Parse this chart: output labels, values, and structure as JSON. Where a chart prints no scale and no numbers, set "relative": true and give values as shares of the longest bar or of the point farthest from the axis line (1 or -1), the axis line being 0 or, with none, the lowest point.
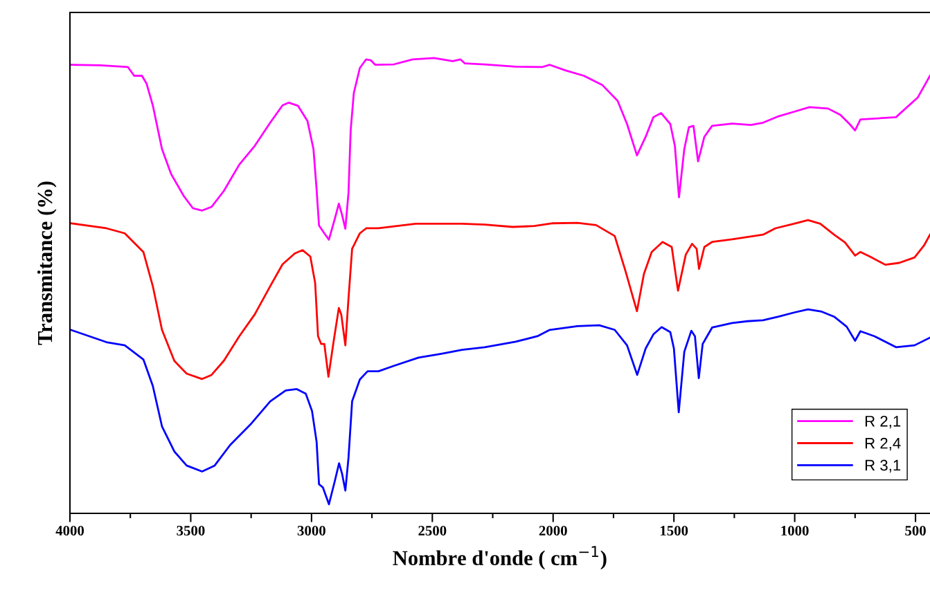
{
  "chart_data": {
    "type": "line",
    "relative": true,
    "xlabel": "Nombre d'onde ( cm$^{−1}$)",
    "ylabel": "Transmitance (%)",
    "xlim": [
      4000,
      440
    ],
    "xticks": [
      4000,
      3500,
      3000,
      2500,
      2000,
      1500,
      1000,
      500
    ],
    "grid": false,
    "legend": "bottom right",
    "tick_labels": "x",
    "series": [
      {
        "name": "R 2,1",
        "color": "#ff00ff",
        "x": [
          3997,
          3875,
          3760,
          3734,
          3702,
          3683,
          3657,
          3619,
          3581,
          3529,
          3491,
          3453,
          3414,
          3363,
          3299,
          3235,
          3171,
          3120,
          3094,
          3056,
          3017,
          2992,
          2979,
          2969,
          2947,
          2928,
          2902,
          2887,
          2874,
          2860,
          2847,
          2838,
          2825,
          2800,
          2774,
          2755,
          2736,
          2659,
          2582,
          2493,
          2416,
          2384,
          2365,
          2283,
          2155,
          2046,
          2014,
          1950,
          1873,
          1797,
          1733,
          1694,
          1653,
          1617,
          1585,
          1553,
          1515,
          1496,
          1479,
          1457,
          1438,
          1419,
          1400,
          1374,
          1342,
          1259,
          1182,
          1131,
          1067,
          1003,
          939,
          862,
          811,
          773,
          750,
          728,
          581,
          491,
          440
        ],
        "values": [
          0.985,
          0.984,
          0.98,
          0.961,
          0.961,
          0.944,
          0.896,
          0.8,
          0.745,
          0.697,
          0.67,
          0.665,
          0.673,
          0.708,
          0.766,
          0.807,
          0.858,
          0.896,
          0.902,
          0.895,
          0.862,
          0.8,
          0.711,
          0.632,
          0.615,
          0.601,
          0.65,
          0.68,
          0.656,
          0.625,
          0.704,
          0.841,
          0.923,
          0.978,
          0.997,
          0.995,
          0.985,
          0.986,
          0.997,
          1,
          0.993,
          0.997,
          0.988,
          0.986,
          0.981,
          0.98,
          0.985,
          0.973,
          0.961,
          0.941,
          0.906,
          0.855,
          0.786,
          0.827,
          0.87,
          0.879,
          0.855,
          0.807,
          0.694,
          0.8,
          0.848,
          0.851,
          0.773,
          0.827,
          0.851,
          0.856,
          0.853,
          0.858,
          0.872,
          0.882,
          0.892,
          0.889,
          0.875,
          0.855,
          0.841,
          0.865,
          0.87,
          0.913,
          0.961
        ]
      },
      {
        "name": "R 2,4",
        "color": "#ff0000",
        "x": [
          3997,
          3849,
          3773,
          3696,
          3657,
          3619,
          3568,
          3517,
          3453,
          3414,
          3363,
          3299,
          3235,
          3171,
          3120,
          3069,
          3037,
          3005,
          2985,
          2973,
          2960,
          2947,
          2930,
          2909,
          2887,
          2877,
          2860,
          2847,
          2832,
          2800,
          2774,
          2723,
          2569,
          2377,
          2283,
          2168,
          2078,
          2001,
          1899,
          1822,
          1745,
          1701,
          1653,
          1624,
          1592,
          1547,
          1509,
          1483,
          1451,
          1425,
          1406,
          1396,
          1374,
          1342,
          1259,
          1131,
          1080,
          1003,
          945,
          894,
          837,
          792,
          750,
          728,
          689,
          625,
          568,
          504,
          465,
          440
        ],
        "values": [
          0.637,
          0.626,
          0.615,
          0.574,
          0.499,
          0.403,
          0.335,
          0.307,
          0.295,
          0.304,
          0.335,
          0.389,
          0.437,
          0.499,
          0.547,
          0.571,
          0.578,
          0.564,
          0.506,
          0.389,
          0.372,
          0.372,
          0.3,
          0.376,
          0.451,
          0.437,
          0.369,
          0.472,
          0.581,
          0.615,
          0.626,
          0.626,
          0.636,
          0.636,
          0.634,
          0.629,
          0.631,
          0.637,
          0.638,
          0.633,
          0.609,
          0.533,
          0.444,
          0.526,
          0.574,
          0.596,
          0.585,
          0.489,
          0.568,
          0.592,
          0.581,
          0.537,
          0.585,
          0.596,
          0.602,
          0.612,
          0.626,
          0.636,
          0.644,
          0.636,
          0.612,
          0.595,
          0.566,
          0.574,
          0.564,
          0.546,
          0.55,
          0.562,
          0.588,
          0.612
        ]
      },
      {
        "name": "R 3,1",
        "color": "#0000ff",
        "x": [
          3997,
          3849,
          3773,
          3696,
          3657,
          3619,
          3568,
          3517,
          3453,
          3401,
          3337,
          3248,
          3171,
          3107,
          3062,
          3024,
          2998,
          2979,
          2969,
          2953,
          2928,
          2905,
          2886,
          2874,
          2860,
          2847,
          2832,
          2800,
          2768,
          2723,
          2659,
          2557,
          2467,
          2377,
          2283,
          2155,
          2065,
          2014,
          1899,
          1809,
          1745,
          1694,
          1652,
          1617,
          1585,
          1551,
          1515,
          1500,
          1480,
          1457,
          1428,
          1413,
          1397,
          1381,
          1342,
          1259,
          1195,
          1131,
          1067,
          1003,
          945,
          888,
          837,
          785,
          750,
          728,
          670,
          581,
          504,
          440
        ],
        "values": [
          0.403,
          0.376,
          0.369,
          0.338,
          0.28,
          0.191,
          0.136,
          0.105,
          0.092,
          0.105,
          0.15,
          0.198,
          0.246,
          0.27,
          0.273,
          0.263,
          0.225,
          0.157,
          0.064,
          0.057,
          0.02,
          0.068,
          0.11,
          0.088,
          0.05,
          0.122,
          0.246,
          0.294,
          0.312,
          0.312,
          0.324,
          0.342,
          0.35,
          0.359,
          0.365,
          0.377,
          0.389,
          0.403,
          0.411,
          0.413,
          0.403,
          0.369,
          0.304,
          0.362,
          0.393,
          0.409,
          0.398,
          0.362,
          0.222,
          0.355,
          0.401,
          0.389,
          0.297,
          0.372,
          0.408,
          0.418,
          0.422,
          0.424,
          0.432,
          0.441,
          0.448,
          0.443,
          0.432,
          0.41,
          0.379,
          0.4,
          0.389,
          0.365,
          0.369,
          0.386
        ]
      }
    ]
  }
}
